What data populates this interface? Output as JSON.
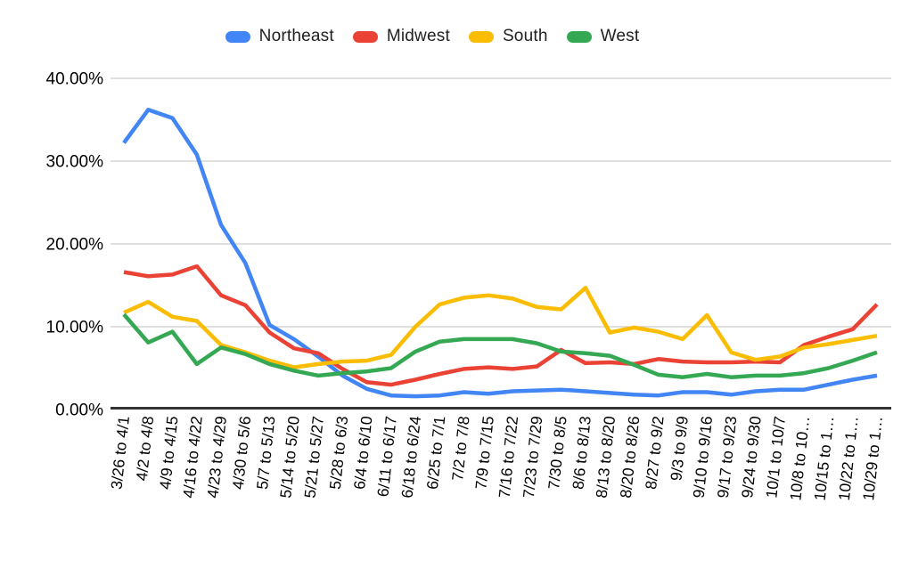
{
  "colors": {
    "background": "#ffffff",
    "gridline": "#cccccc",
    "axis_line": "#333333",
    "axis_text": "#000000",
    "legend_text": "#212121"
  },
  "chart_data": {
    "type": "line",
    "title": "",
    "xlabel": "",
    "ylabel": "",
    "ylim": [
      0,
      40
    ],
    "grid": true,
    "legend_position": "top",
    "y_ticks": {
      "values": [
        0,
        10,
        20,
        30,
        40
      ],
      "labels": [
        "0.00%",
        "10.00%",
        "20.00%",
        "30.00%",
        "40.00%"
      ]
    },
    "categories": [
      "3/26 to 4/1",
      "4/2 to 4/8",
      "4/9 to 4/15",
      "4/16 to 4/22",
      "4/23 to 4/29",
      "4/30 to 5/6",
      "5/7 to 5/13",
      "5/14 to 5/20",
      "5/21 to 5/27",
      "5/28 to 6/3",
      "6/4 to 6/10",
      "6/11 to 6/17",
      "6/18 to 6/24",
      "6/25 to 7/1",
      "7/2 to 7/8",
      "7/9 to 7/15",
      "7/16 to 7/22",
      "7/23 to 7/29",
      "7/30 to 8/5",
      "8/6 to 8/13",
      "8/13 to 8/20",
      "8/20 to 8/26",
      "8/27 to 9/2",
      "9/3 to 9/9",
      "9/10 to 9/16",
      "9/17 to 9/23",
      "9/24 to 9/30",
      "10/1 to 10/7",
      "10/8 to 10…",
      "10/15 to 1…",
      "10/22 to 1…",
      "10/29 to 1…"
    ],
    "series": [
      {
        "name": "Northeast",
        "color": "#4285F4",
        "values": [
          32.2,
          36.2,
          35.2,
          30.8,
          22.3,
          17.7,
          10.2,
          8.5,
          6.4,
          4.1,
          2.5,
          1.7,
          1.6,
          1.7,
          2.1,
          1.9,
          2.2,
          2.3,
          2.4,
          2.2,
          2.0,
          1.8,
          1.7,
          2.1,
          2.1,
          1.8,
          2.2,
          2.4,
          2.4,
          3.0,
          3.6,
          4.1
        ]
      },
      {
        "name": "Midwest",
        "color": "#EA4335",
        "values": [
          16.6,
          16.1,
          16.3,
          17.3,
          13.8,
          12.6,
          9.3,
          7.4,
          6.8,
          4.9,
          3.3,
          3.0,
          3.6,
          4.3,
          4.9,
          5.1,
          4.9,
          5.2,
          7.2,
          5.6,
          5.7,
          5.5,
          6.1,
          5.8,
          5.7,
          5.7,
          5.8,
          5.7,
          7.8,
          8.8,
          9.7,
          12.7
        ]
      },
      {
        "name": "South",
        "color": "#FBBC04",
        "values": [
          11.7,
          13.0,
          11.2,
          10.7,
          7.8,
          6.9,
          5.9,
          5.1,
          5.5,
          5.8,
          5.9,
          6.6,
          10.0,
          12.7,
          13.5,
          13.8,
          13.4,
          12.4,
          12.1,
          14.7,
          9.3,
          9.9,
          9.4,
          8.5,
          11.4,
          6.9,
          6.0,
          6.4,
          7.5,
          7.9,
          8.4,
          8.9
        ]
      },
      {
        "name": "West",
        "color": "#34A853",
        "values": [
          11.5,
          8.1,
          9.4,
          5.5,
          7.5,
          6.7,
          5.5,
          4.7,
          4.1,
          4.4,
          4.6,
          5.0,
          7.0,
          8.2,
          8.5,
          8.5,
          8.5,
          8.0,
          7.0,
          6.8,
          6.5,
          5.4,
          4.2,
          3.9,
          4.3,
          3.9,
          4.1,
          4.1,
          4.4,
          5.0,
          5.9,
          6.9
        ]
      }
    ]
  }
}
